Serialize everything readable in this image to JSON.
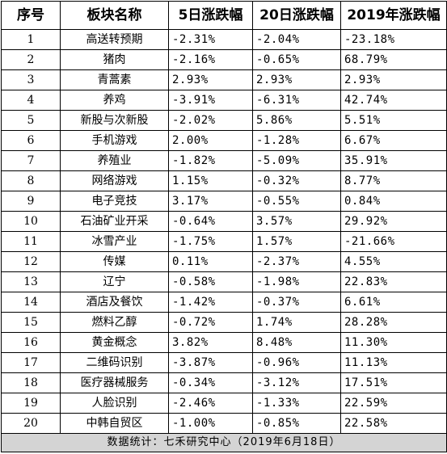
{
  "table": {
    "headers": [
      "序号",
      "板块名称",
      "5日涨跌幅",
      "20日涨跌幅",
      "2019年涨跌幅"
    ],
    "rows": [
      [
        "1",
        "高送转预期",
        "-2.31%",
        "-2.04%",
        "-23.18%"
      ],
      [
        "2",
        "猪肉",
        "-2.16%",
        "-0.65%",
        "68.79%"
      ],
      [
        "3",
        "青蒿素",
        "2.93%",
        "2.93%",
        "2.93%"
      ],
      [
        "4",
        "养鸡",
        "-3.91%",
        "-6.31%",
        "42.74%"
      ],
      [
        "5",
        "新股与次新股",
        "-2.02%",
        "5.86%",
        "5.51%"
      ],
      [
        "6",
        "手机游戏",
        "2.00%",
        "-1.28%",
        "6.67%"
      ],
      [
        "7",
        "养殖业",
        "-1.82%",
        "-5.09%",
        "35.91%"
      ],
      [
        "8",
        "网络游戏",
        "1.15%",
        "-0.32%",
        "8.77%"
      ],
      [
        "9",
        "电子竞技",
        "3.17%",
        "-0.55%",
        "0.84%"
      ],
      [
        "10",
        "石油矿业开采",
        "-0.64%",
        "3.57%",
        "29.92%"
      ],
      [
        "11",
        "冰雪产业",
        "-1.75%",
        "1.57%",
        "-21.66%"
      ],
      [
        "12",
        "传媒",
        "0.11%",
        "-2.37%",
        "4.55%"
      ],
      [
        "13",
        "辽宁",
        "-0.58%",
        "-1.98%",
        "22.83%"
      ],
      [
        "14",
        "酒店及餐饮",
        "-1.42%",
        "-0.37%",
        "6.61%"
      ],
      [
        "15",
        "燃料乙醇",
        "-0.72%",
        "1.74%",
        "28.28%"
      ],
      [
        "16",
        "黄金概念",
        "3.82%",
        "8.48%",
        "11.30%"
      ],
      [
        "17",
        "二维码识别",
        "-3.87%",
        "-0.96%",
        "11.13%"
      ],
      [
        "18",
        "医疗器械服务",
        "-0.34%",
        "-3.12%",
        "17.51%"
      ],
      [
        "19",
        "人脸识别",
        "-2.46%",
        "-1.33%",
        "22.59%"
      ],
      [
        "20",
        "中韩自贸区",
        "-1.00%",
        "-0.85%",
        "22.58%"
      ]
    ],
    "footer": "数据统计：七禾研究中心（2019年6月18日）"
  },
  "colors": {
    "border": "#000000",
    "footer_background": "#d4d4d4"
  }
}
